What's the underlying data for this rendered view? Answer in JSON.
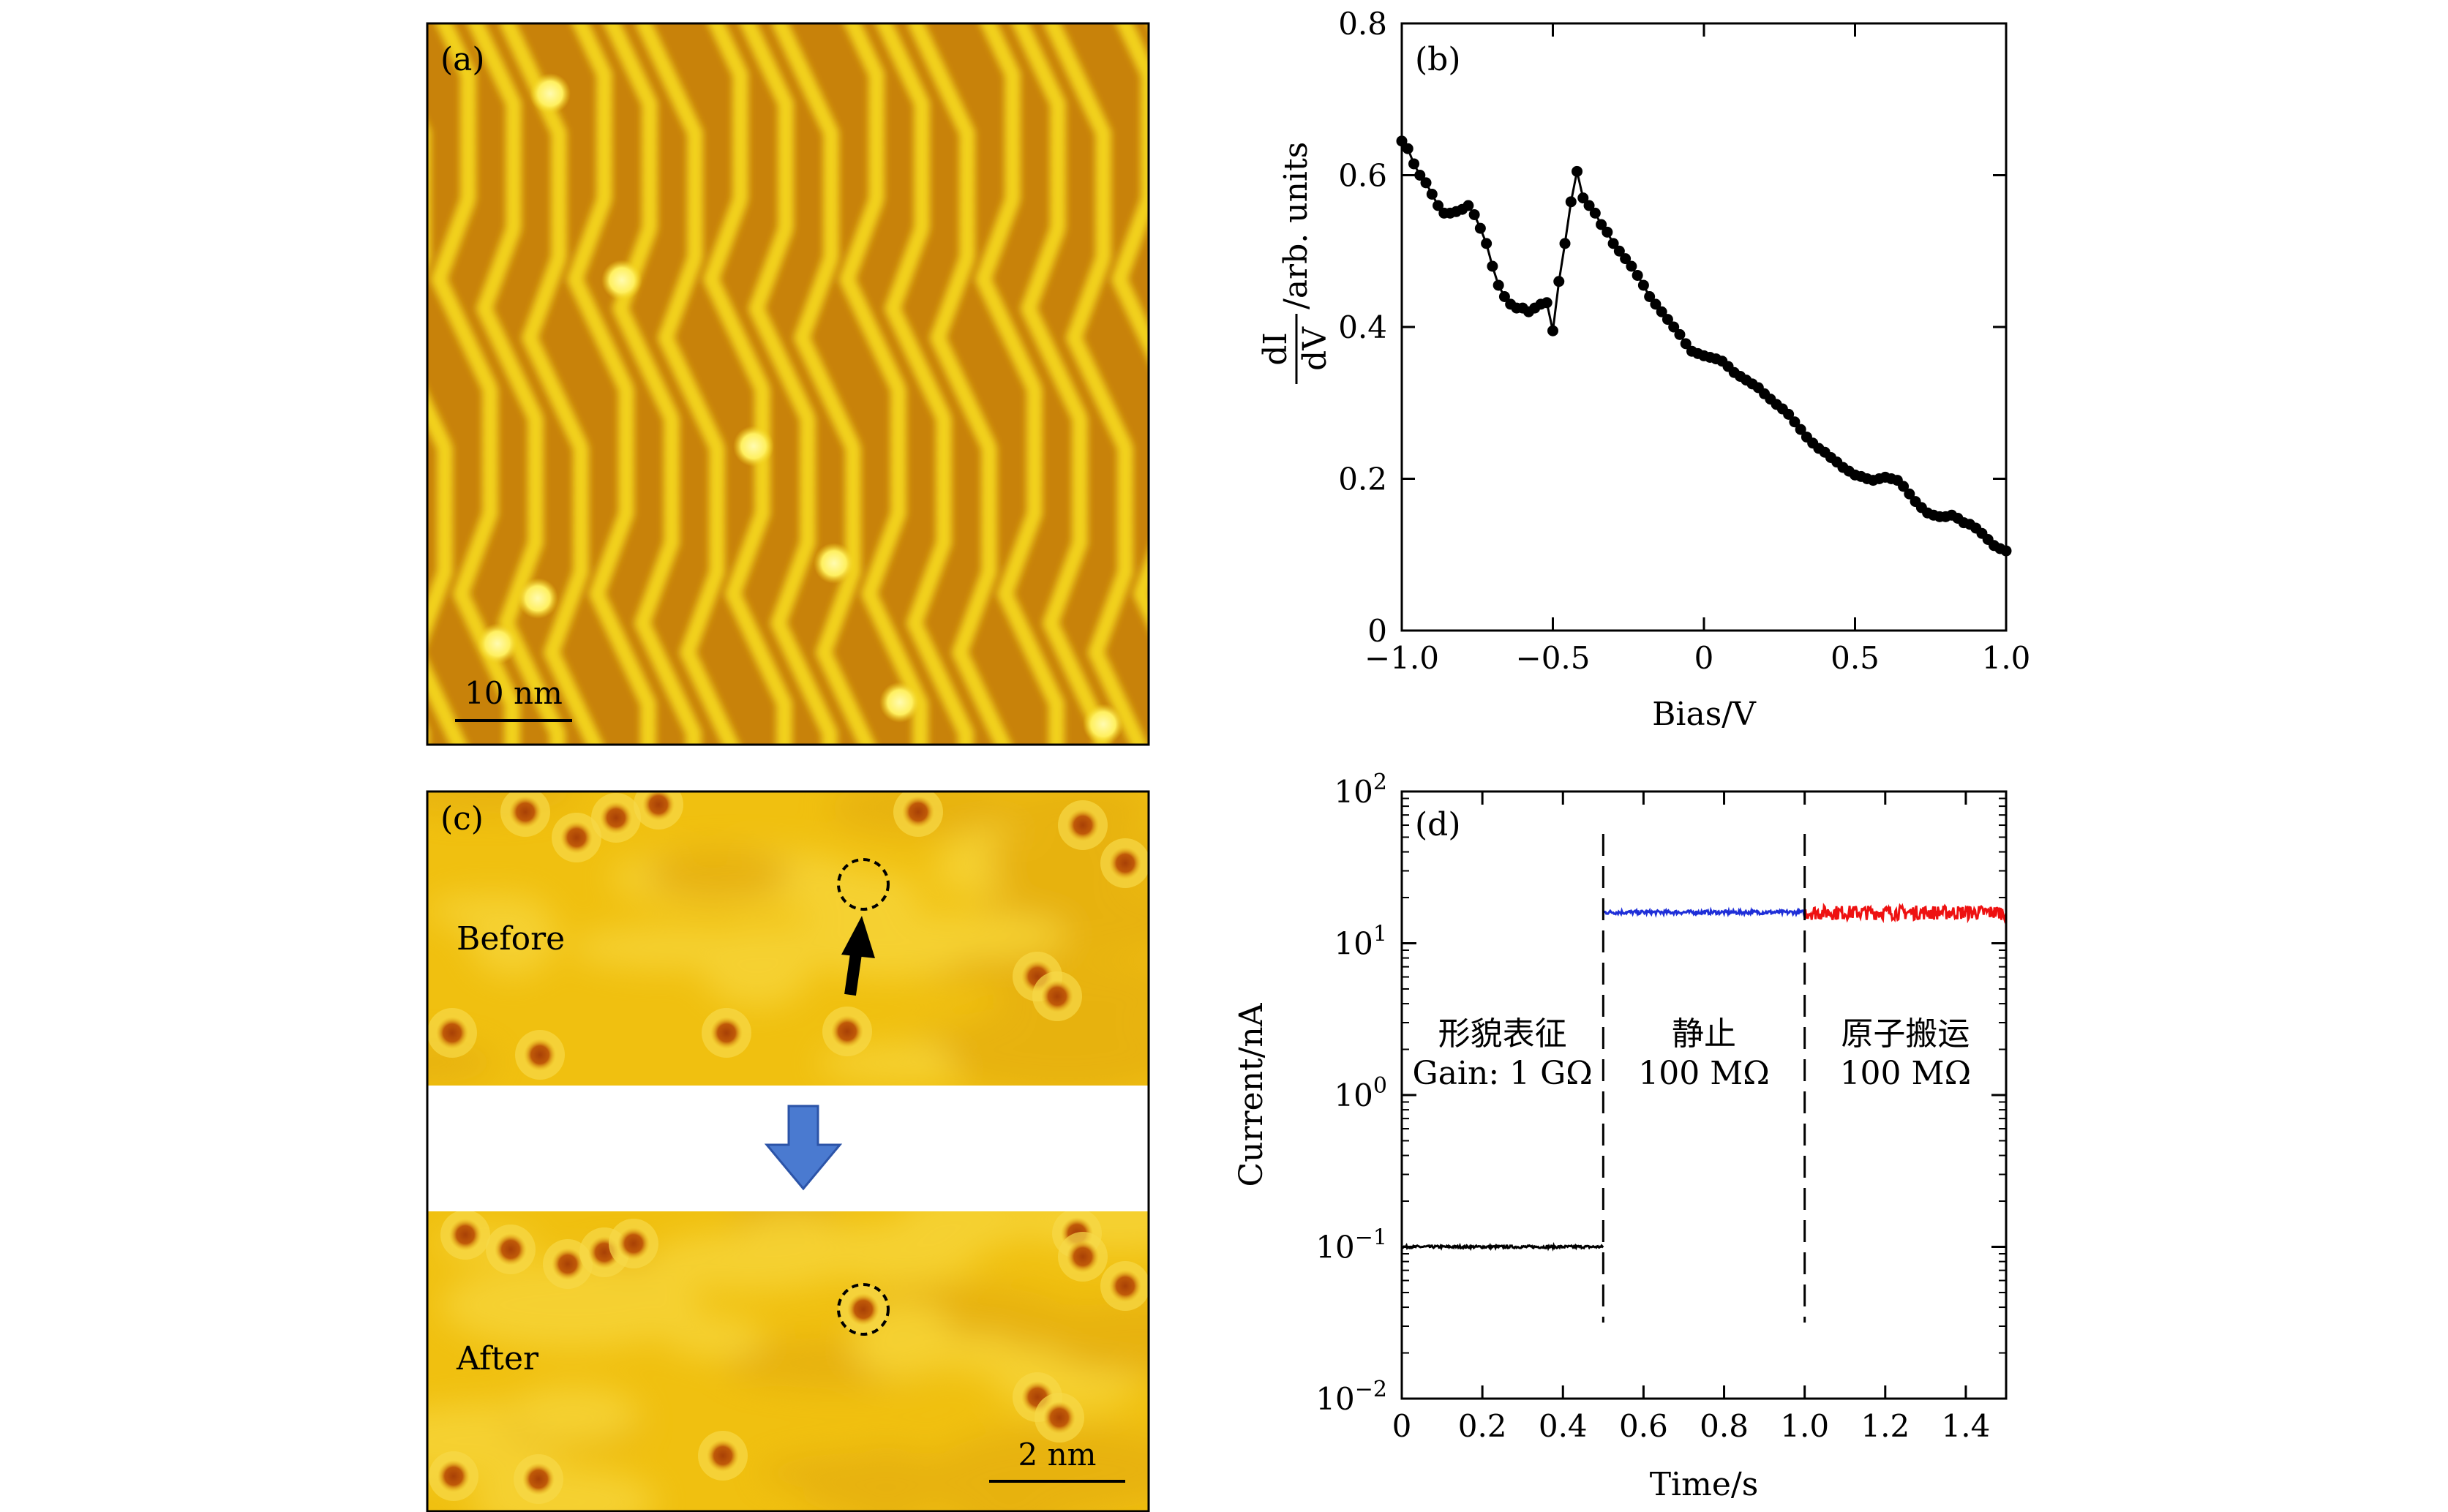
{
  "figure": {
    "panel_labels": {
      "a": "(a)",
      "b": "(b)",
      "c": "(c)",
      "d": "(d)"
    },
    "panel_a": {
      "scale_bar": "10 nm",
      "colors": {
        "substrate": "#c8820a",
        "chain": "#f2d21a",
        "spot": "#fff47a"
      }
    },
    "panel_c": {
      "before_label": "Before",
      "after_label": "After",
      "scale_bar": "2 nm",
      "colors": {
        "surface": "#f0c010",
        "pit": "#b84e08",
        "arrow": "#4a7ad0"
      }
    }
  },
  "chart_data": [
    {
      "type": "scatter",
      "panel": "(b)",
      "xlabel": "Bias/V",
      "ylabel_fraction": {
        "numerator": "dI",
        "denominator": "dV"
      },
      "ylabel_suffix": "/arb. units",
      "xlim": [
        -1.0,
        1.0
      ],
      "ylim": [
        0,
        0.8
      ],
      "xticks": [
        -1.0,
        -0.5,
        0,
        0.5,
        1.0
      ],
      "xtick_labels": [
        "−1.0",
        "−0.5",
        "0",
        "0.5",
        "1.0"
      ],
      "yticks": [
        0,
        0.2,
        0.4,
        0.6,
        0.8
      ],
      "ytick_labels": [
        "0",
        "0.2",
        "0.4",
        "0.6",
        "0.8"
      ],
      "series": [
        {
          "name": "dI/dV",
          "color": "#000000",
          "x": [
            -1.0,
            -0.98,
            -0.96,
            -0.94,
            -0.92,
            -0.9,
            -0.88,
            -0.86,
            -0.84,
            -0.82,
            -0.8,
            -0.78,
            -0.76,
            -0.74,
            -0.72,
            -0.7,
            -0.68,
            -0.66,
            -0.64,
            -0.62,
            -0.6,
            -0.58,
            -0.56,
            -0.54,
            -0.52,
            -0.5,
            -0.48,
            -0.46,
            -0.44,
            -0.42,
            -0.4,
            -0.38,
            -0.36,
            -0.34,
            -0.32,
            -0.3,
            -0.28,
            -0.26,
            -0.24,
            -0.22,
            -0.2,
            -0.18,
            -0.16,
            -0.14,
            -0.12,
            -0.1,
            -0.08,
            -0.06,
            -0.04,
            -0.02,
            0.0,
            0.02,
            0.04,
            0.06,
            0.08,
            0.1,
            0.12,
            0.14,
            0.16,
            0.18,
            0.2,
            0.22,
            0.24,
            0.26,
            0.28,
            0.3,
            0.32,
            0.34,
            0.36,
            0.38,
            0.4,
            0.42,
            0.44,
            0.46,
            0.48,
            0.5,
            0.52,
            0.54,
            0.56,
            0.58,
            0.6,
            0.62,
            0.64,
            0.66,
            0.68,
            0.7,
            0.72,
            0.74,
            0.76,
            0.78,
            0.8,
            0.82,
            0.84,
            0.86,
            0.88,
            0.9,
            0.92,
            0.94,
            0.96,
            0.98,
            1.0
          ],
          "y": [
            0.645,
            0.635,
            0.615,
            0.6,
            0.59,
            0.575,
            0.56,
            0.55,
            0.55,
            0.552,
            0.555,
            0.56,
            0.548,
            0.53,
            0.51,
            0.48,
            0.455,
            0.44,
            0.43,
            0.425,
            0.425,
            0.42,
            0.425,
            0.43,
            0.432,
            0.395,
            0.46,
            0.51,
            0.565,
            0.605,
            0.57,
            0.56,
            0.55,
            0.535,
            0.525,
            0.51,
            0.5,
            0.49,
            0.48,
            0.468,
            0.455,
            0.44,
            0.43,
            0.42,
            0.41,
            0.4,
            0.39,
            0.378,
            0.368,
            0.365,
            0.362,
            0.36,
            0.358,
            0.355,
            0.348,
            0.34,
            0.335,
            0.33,
            0.325,
            0.32,
            0.312,
            0.305,
            0.298,
            0.292,
            0.285,
            0.275,
            0.265,
            0.255,
            0.247,
            0.24,
            0.235,
            0.228,
            0.222,
            0.215,
            0.21,
            0.205,
            0.203,
            0.2,
            0.198,
            0.2,
            0.202,
            0.2,
            0.198,
            0.19,
            0.18,
            0.17,
            0.162,
            0.155,
            0.152,
            0.15,
            0.15,
            0.152,
            0.148,
            0.142,
            0.14,
            0.135,
            0.128,
            0.12,
            0.112,
            0.108,
            0.105
          ]
        }
      ]
    },
    {
      "type": "line",
      "panel": "(d)",
      "xlabel": "Time/s",
      "ylabel": "Current/nA",
      "yscale": "log",
      "xlim": [
        0,
        1.5
      ],
      "ylim": [
        0.01,
        100
      ],
      "xticks": [
        0,
        0.2,
        0.4,
        0.6,
        0.8,
        1.0,
        1.2,
        1.4
      ],
      "xtick_labels": [
        "0",
        "0.2",
        "0.4",
        "0.6",
        "0.8",
        "1.0",
        "1.2",
        "1.4"
      ],
      "yticks": [
        {
          "value": 100,
          "base": "10",
          "exp": "2"
        },
        {
          "value": 10,
          "base": "10",
          "exp": "1"
        },
        {
          "value": 1,
          "base": "10",
          "exp": "0"
        },
        {
          "value": 0.1,
          "base": "10",
          "exp": "−1"
        },
        {
          "value": 0.01,
          "base": "10",
          "exp": "−2"
        }
      ],
      "dividers": [
        0.5,
        1.0
      ],
      "series": [
        {
          "name": "topography",
          "color": "#000000",
          "x_range": [
            0,
            0.5
          ],
          "level": 0.1,
          "noise": 0.02
        },
        {
          "name": "static",
          "color": "#1f2fd8",
          "x_range": [
            0.5,
            1.0
          ],
          "level": 16,
          "noise": 0.03
        },
        {
          "name": "atom manipulation",
          "color": "#ee1111",
          "x_range": [
            1.0,
            1.5
          ],
          "level": 16,
          "noise": 0.11
        }
      ],
      "annotations": [
        {
          "line1": "形貌表征",
          "line2": "Gain: 1 GΩ"
        },
        {
          "line1": "静止",
          "line2": "100 MΩ"
        },
        {
          "line1": "原子搬运",
          "line2": "100 MΩ"
        }
      ]
    }
  ]
}
